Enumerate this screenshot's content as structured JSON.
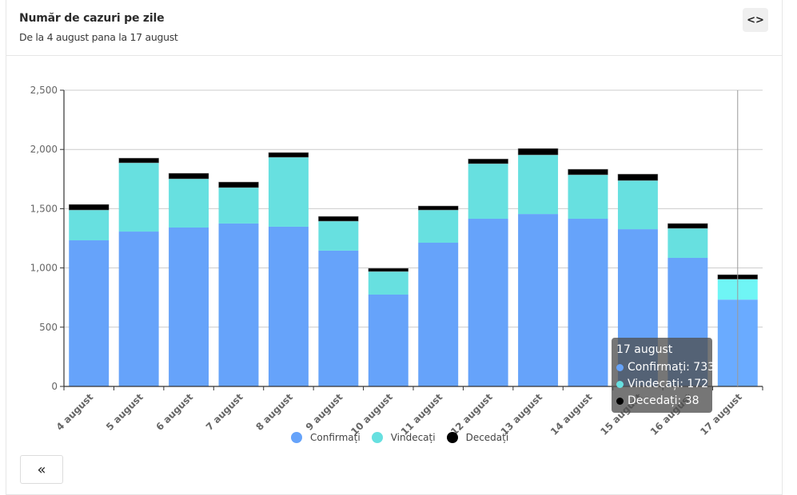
{
  "header": {
    "title": "Număr de cazuri pe zile",
    "subtitle": "De la 4 august pana la 17 august",
    "code_button_icon": "code-icon",
    "code_button_label": "<>"
  },
  "footer": {
    "back_button_icon": "double-chevron-left-icon",
    "back_button_label": "«"
  },
  "tooltip": {
    "title": "17 august",
    "rows": [
      {
        "label": "Confirmați: 733",
        "color": "#66a3fa"
      },
      {
        "label": "Vindecați: 172",
        "color": "#67e0e0"
      },
      {
        "label": "Decedați: 38",
        "color": "#000000"
      }
    ]
  },
  "chart_data": {
    "type": "bar",
    "stacked": true,
    "title": "Număr de cazuri pe zile",
    "subtitle": "De la 4 august pana la 17 august",
    "xlabel": "",
    "ylabel": "",
    "ylim": [
      0,
      2500
    ],
    "yticks": [
      0,
      500,
      1000,
      1500,
      2000,
      2500
    ],
    "ytick_labels": [
      "0",
      "500",
      "1,000",
      "1,500",
      "2,000",
      "2,500"
    ],
    "grid": true,
    "legend_position": "bottom-center",
    "categories": [
      "4 august",
      "5 august",
      "6 august",
      "7 august",
      "8 august",
      "9 august",
      "10 august",
      "11 august",
      "12 august",
      "13 august",
      "14 august",
      "15 august",
      "16 august",
      "17 august"
    ],
    "series": [
      {
        "name": "Confirmați",
        "color": "#66a3fa",
        "values": [
          1233,
          1307,
          1341,
          1375,
          1348,
          1146,
          775,
          1213,
          1415,
          1455,
          1415,
          1327,
          1085,
          733
        ]
      },
      {
        "name": "Vindecați",
        "color": "#67e0e0",
        "values": [
          256,
          580,
          411,
          303,
          586,
          249,
          195,
          276,
          465,
          499,
          371,
          411,
          249,
          172
        ]
      },
      {
        "name": "Decedați",
        "color": "#000000",
        "values": [
          47,
          40,
          47,
          47,
          40,
          40,
          27,
          34,
          40,
          54,
          47,
          54,
          41,
          38
        ]
      }
    ],
    "highlighted_category": "17 august"
  }
}
